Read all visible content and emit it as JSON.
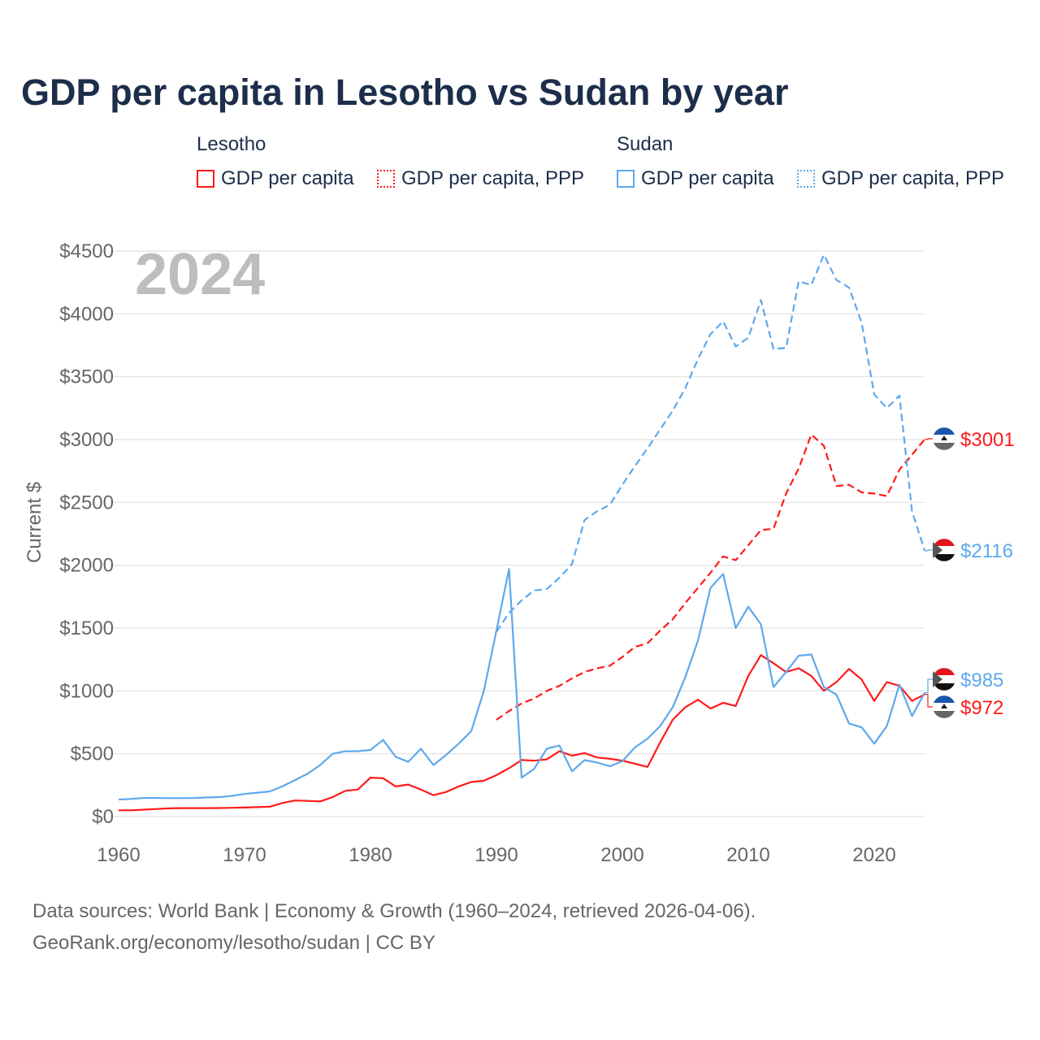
{
  "chart_data": {
    "type": "line",
    "title": "GDP per capita in Lesotho vs Sudan by year",
    "ylabel": "Current $",
    "xlabel": "",
    "year_watermark": "2024",
    "xlim": [
      1960,
      2024
    ],
    "ylim": [
      0,
      4500
    ],
    "x_ticks": [
      1960,
      1970,
      1980,
      1990,
      2000,
      2010,
      2020
    ],
    "y_ticks": [
      0,
      500,
      1000,
      1500,
      2000,
      2500,
      3000,
      3500,
      4000,
      4500
    ],
    "y_tick_labels": [
      "$0",
      "$500",
      "$1000",
      "$1500",
      "$2000",
      "$2500",
      "$3000",
      "$3500",
      "$4000",
      "$4500"
    ],
    "grid": true,
    "legend": {
      "placement": "top",
      "groups": [
        {
          "name": "Lesotho",
          "items": [
            "GDP per capita",
            "GDP per capita, PPP"
          ]
        },
        {
          "name": "Sudan",
          "items": [
            "GDP per capita",
            "GDP per capita, PPP"
          ]
        }
      ]
    },
    "series": [
      {
        "name": "Lesotho GDP per capita",
        "country": "Lesotho",
        "color": "#ff1a1a",
        "dash": false,
        "start": 1960,
        "values": [
          50,
          50,
          55,
          60,
          65,
          67,
          67,
          67,
          68,
          70,
          72,
          75,
          78,
          108,
          128,
          125,
          120,
          155,
          205,
          215,
          310,
          305,
          240,
          255,
          215,
          170,
          195,
          240,
          275,
          285,
          330,
          385,
          450,
          445,
          455,
          520,
          485,
          505,
          470,
          460,
          445,
          420,
          395,
          590,
          770,
          870,
          930,
          860,
          905,
          880,
          1120,
          1285,
          1220,
          1150,
          1180,
          1120,
          1000,
          1070,
          1175,
          1090,
          920,
          1070,
          1040,
          920,
          972
        ],
        "end_label": "$972"
      },
      {
        "name": "Lesotho GDP per capita, PPP",
        "country": "Lesotho",
        "color": "#ff1a1a",
        "dash": true,
        "start": 1990,
        "values": [
          770,
          840,
          900,
          940,
          1000,
          1040,
          1100,
          1150,
          1180,
          1200,
          1270,
          1350,
          1380,
          1480,
          1570,
          1700,
          1820,
          1940,
          2070,
          2040,
          2160,
          2280,
          2290,
          2570,
          2770,
          3040,
          2950,
          2630,
          2640,
          2580,
          2570,
          2550,
          2760,
          2880,
          3001
        ],
        "end_label": "$3001"
      },
      {
        "name": "Sudan GDP per capita",
        "country": "Sudan",
        "color": "#5fa8ec",
        "dash": false,
        "start": 1960,
        "values": [
          136,
          140,
          148,
          148,
          147,
          147,
          148,
          152,
          155,
          165,
          180,
          190,
          200,
          240,
          290,
          340,
          410,
          500,
          520,
          520,
          530,
          610,
          475,
          435,
          540,
          410,
          490,
          580,
          680,
          1000,
          1480,
          1970,
          310,
          380,
          540,
          565,
          360,
          450,
          430,
          400,
          440,
          550,
          620,
          720,
          870,
          1110,
          1400,
          1820,
          1930,
          1500,
          1670,
          1530,
          1030,
          1150,
          1280,
          1290,
          1030,
          970,
          740,
          710,
          580,
          720,
          1050,
          800,
          985
        ],
        "end_label": "$985"
      },
      {
        "name": "Sudan GDP per capita, PPP",
        "country": "Sudan",
        "color": "#5fa8ec",
        "dash": true,
        "start": 1990,
        "values": [
          1470,
          1620,
          1720,
          1800,
          1810,
          1900,
          2010,
          2360,
          2430,
          2480,
          2640,
          2790,
          2930,
          3080,
          3230,
          3410,
          3640,
          3840,
          3940,
          3740,
          3810,
          4110,
          3720,
          3730,
          4260,
          4230,
          4470,
          4270,
          4210,
          3930,
          3360,
          3250,
          3350,
          2430,
          2116
        ],
        "end_label": "$2116"
      }
    ]
  },
  "footer": {
    "line1": "Data sources: World Bank | Economy & Growth (1960–2024, retrieved 2026-04-06).",
    "line2": "GeoRank.org/economy/lesotho/sudan | CC BY"
  }
}
